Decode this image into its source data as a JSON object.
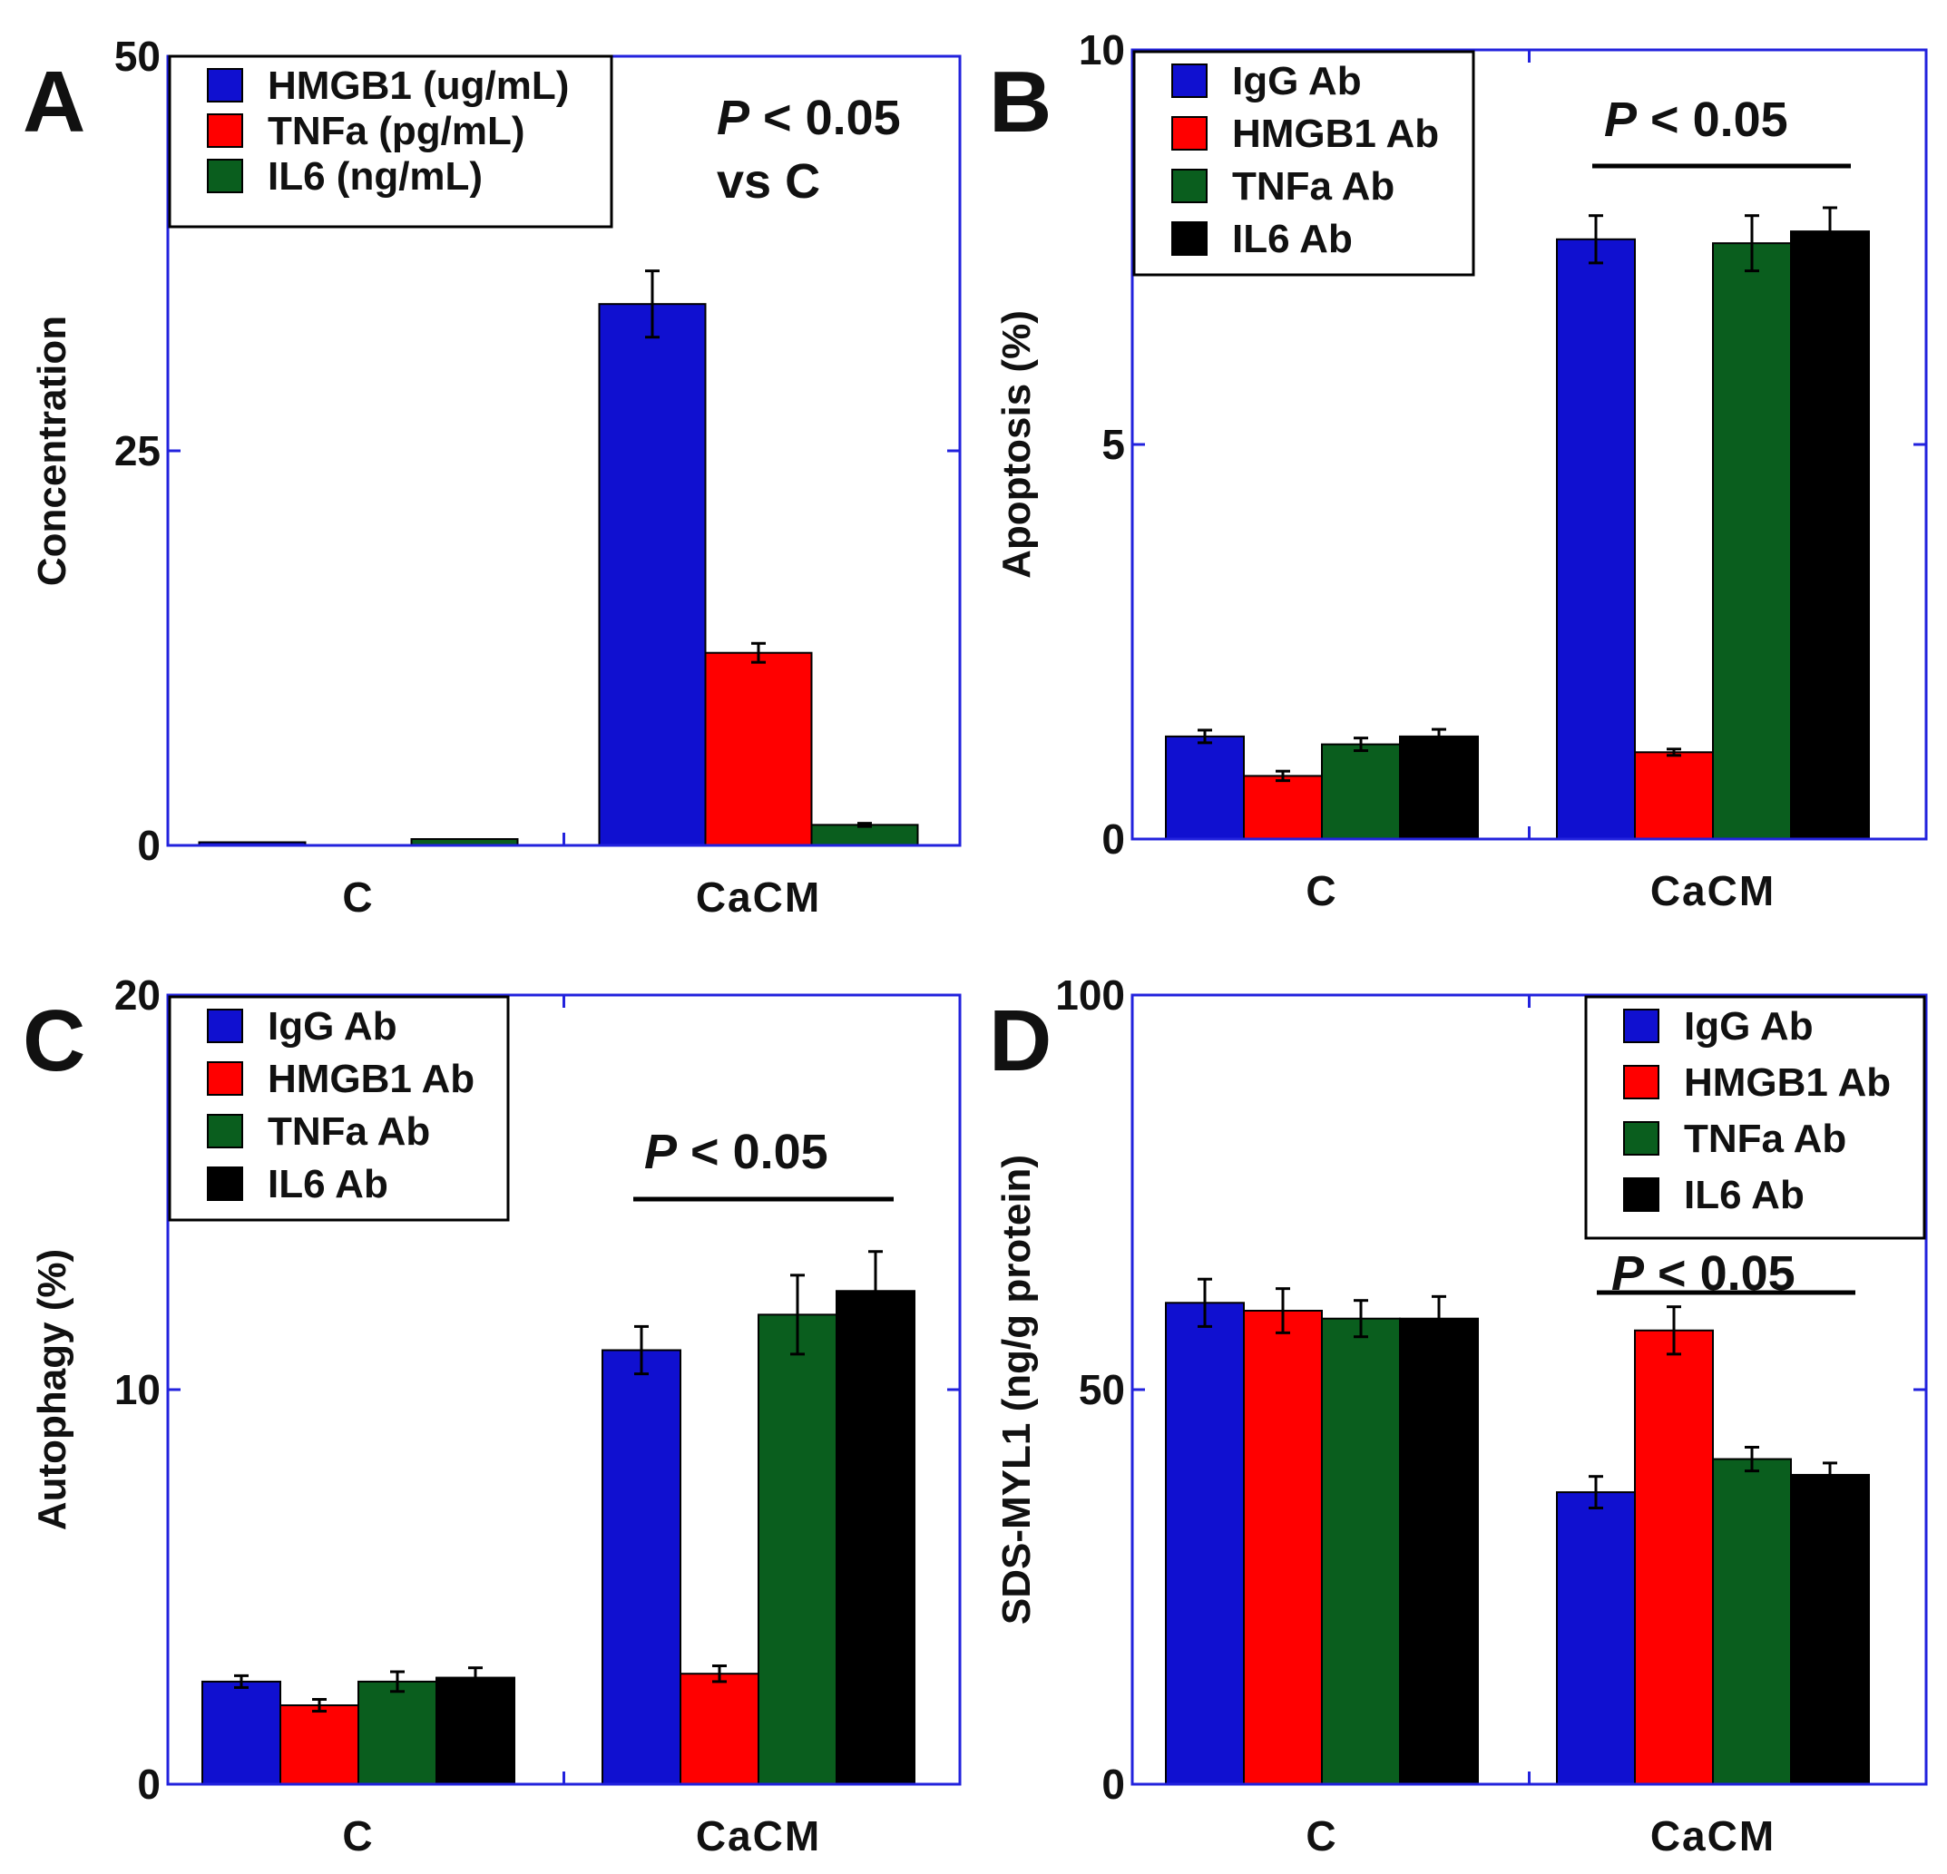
{
  "chart_data": [
    {
      "panel": "A",
      "type": "bar",
      "ylabel": "Concentration",
      "ylim": [
        0,
        50
      ],
      "yticks": [
        0,
        25,
        50
      ],
      "categories": [
        "C",
        "CaCM"
      ],
      "legend_position": "top-left",
      "colors": [
        "#1010d0",
        "#ff0000",
        "#0a5e1e"
      ],
      "series": [
        {
          "name": "HMGB1 (ug/mL)",
          "values": [
            0.2,
            34.3
          ],
          "errors": [
            0,
            2.1
          ]
        },
        {
          "name": "TNFa (pg/mL)",
          "values": [
            0,
            12.2
          ],
          "errors": [
            0,
            0.6
          ]
        },
        {
          "name": "IL6 (ng/mL)",
          "values": [
            0.4,
            1.3
          ],
          "errors": [
            0,
            0.1
          ]
        }
      ],
      "annotation": {
        "p_prefix": "P",
        "p_rest": " < 0.05",
        "line2": "vs C"
      },
      "bracket": false
    },
    {
      "panel": "B",
      "type": "bar",
      "ylabel": "Apoptosis (%)",
      "ylim": [
        0,
        10
      ],
      "yticks": [
        0,
        5,
        10
      ],
      "categories": [
        "C",
        "CaCM"
      ],
      "legend_position": "top-left",
      "colors": [
        "#1010d0",
        "#ff0000",
        "#0a5e1e",
        "#000000"
      ],
      "series": [
        {
          "name": "IgG Ab",
          "values": [
            1.3,
            7.6
          ],
          "errors": [
            0.08,
            0.3
          ]
        },
        {
          "name": "HMGB1 Ab",
          "values": [
            0.8,
            1.1
          ],
          "errors": [
            0.06,
            0.04
          ]
        },
        {
          "name": "TNFa Ab",
          "values": [
            1.2,
            7.55
          ],
          "errors": [
            0.08,
            0.35
          ]
        },
        {
          "name": "IL6 Ab",
          "values": [
            1.3,
            7.7
          ],
          "errors": [
            0.09,
            0.3
          ]
        }
      ],
      "annotation": {
        "p_prefix": "P",
        "p_rest": " < 0.05",
        "line2": ""
      },
      "bracket": true
    },
    {
      "panel": "C",
      "type": "bar",
      "ylabel": "Autophagy (%)",
      "ylim": [
        0,
        20
      ],
      "yticks": [
        0,
        10,
        20
      ],
      "categories": [
        "C",
        "CaCM"
      ],
      "legend_position": "top-left",
      "colors": [
        "#1010d0",
        "#ff0000",
        "#0a5e1e",
        "#000000"
      ],
      "series": [
        {
          "name": "IgG Ab",
          "values": [
            2.6,
            11.0
          ],
          "errors": [
            0.15,
            0.6
          ]
        },
        {
          "name": "HMGB1 Ab",
          "values": [
            2.0,
            2.8
          ],
          "errors": [
            0.15,
            0.2
          ]
        },
        {
          "name": "TNFa Ab",
          "values": [
            2.6,
            11.9
          ],
          "errors": [
            0.25,
            1.0
          ]
        },
        {
          "name": "IL6 Ab",
          "values": [
            2.7,
            12.5
          ],
          "errors": [
            0.25,
            1.0
          ]
        }
      ],
      "annotation": {
        "p_prefix": "P",
        "p_rest": " < 0.05",
        "line2": ""
      },
      "bracket": true
    },
    {
      "panel": "D",
      "type": "bar",
      "ylabel": "SDS-MYL1 (ng/g protein)",
      "ylim": [
        0,
        100
      ],
      "yticks": [
        0,
        50,
        100
      ],
      "categories": [
        "C",
        "CaCM"
      ],
      "legend_position": "top-right",
      "colors": [
        "#1010d0",
        "#ff0000",
        "#0a5e1e",
        "#000000"
      ],
      "series": [
        {
          "name": "IgG Ab",
          "values": [
            61,
            37
          ],
          "errors": [
            3,
            2
          ]
        },
        {
          "name": "HMGB1 Ab",
          "values": [
            60,
            57.5
          ],
          "errors": [
            2.8,
            3
          ]
        },
        {
          "name": "TNFa Ab",
          "values": [
            59,
            41.2
          ],
          "errors": [
            2.3,
            1.5
          ]
        },
        {
          "name": "IL6 Ab",
          "values": [
            59,
            39.2
          ],
          "errors": [
            2.8,
            1.5
          ]
        }
      ],
      "annotation": {
        "p_prefix": "P",
        "p_rest": " < 0.05",
        "line2": ""
      },
      "bracket": true
    }
  ]
}
